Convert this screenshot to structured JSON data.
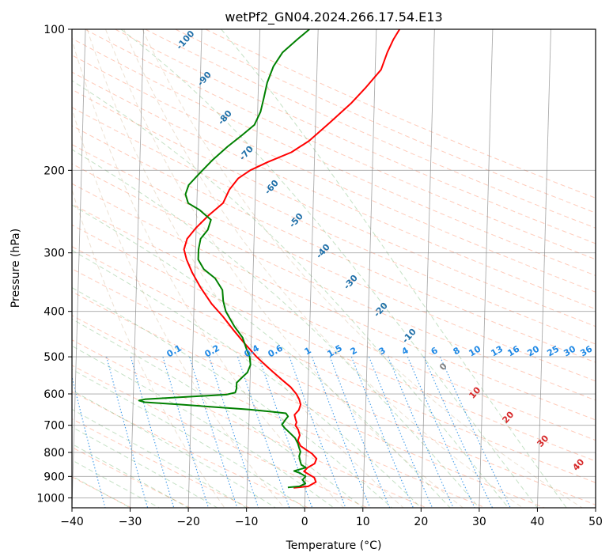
{
  "chart_data": {
    "type": "line",
    "title": "wetPf2_GN04.2024.266.17.54.E13",
    "xlabel": "Temperature (°C)",
    "ylabel": "Pressure (hPa)",
    "xlim": [
      -40,
      50
    ],
    "ylim": [
      1050,
      100
    ],
    "y_scale": "log",
    "skew": "skew-T",
    "x_ticks": [
      -40,
      -30,
      -20,
      -10,
      0,
      10,
      20,
      30,
      40,
      50
    ],
    "y_ticks": [
      100,
      200,
      300,
      400,
      500,
      600,
      700,
      800,
      900,
      1000
    ],
    "grid": true,
    "series": [
      {
        "color": "#ff0000",
        "points": [
          [
            -2,
            952
          ],
          [
            0.5,
            945
          ],
          [
            1.8,
            925
          ],
          [
            1.5,
            905
          ],
          [
            0.5,
            890
          ],
          [
            -0.3,
            878
          ],
          [
            0.3,
            862
          ],
          [
            1.5,
            845
          ],
          [
            1.8,
            825
          ],
          [
            1,
            805
          ],
          [
            0,
            790
          ],
          [
            -1,
            775
          ],
          [
            -1.5,
            755
          ],
          [
            -1.2,
            735
          ],
          [
            -1.5,
            715
          ],
          [
            -2,
            700
          ],
          [
            -1.8,
            690
          ],
          [
            -2,
            680
          ],
          [
            -2.2,
            665
          ],
          [
            -1.5,
            650
          ],
          [
            -1.2,
            632
          ],
          [
            -1.5,
            615
          ],
          [
            -2,
            600
          ],
          [
            -3,
            580
          ],
          [
            -4.5,
            560
          ],
          [
            -6,
            540
          ],
          [
            -7.5,
            520
          ],
          [
            -9,
            500
          ],
          [
            -11,
            470
          ],
          [
            -13,
            440
          ],
          [
            -15,
            410
          ],
          [
            -17,
            385
          ],
          [
            -19,
            355
          ],
          [
            -20.5,
            330
          ],
          [
            -21.5,
            310
          ],
          [
            -22,
            295
          ],
          [
            -21.5,
            280
          ],
          [
            -20,
            265
          ],
          [
            -18,
            250
          ],
          [
            -15.5,
            235
          ],
          [
            -14.5,
            220
          ],
          [
            -13,
            208
          ],
          [
            -11,
            200
          ],
          [
            -8,
            192
          ],
          [
            -4,
            183
          ],
          [
            -1,
            173
          ],
          [
            2.5,
            158
          ],
          [
            6,
            144
          ],
          [
            8.5,
            133
          ],
          [
            11,
            122
          ],
          [
            12,
            112
          ],
          [
            13,
            105
          ],
          [
            14,
            100
          ]
        ]
      },
      {
        "color": "#008000",
        "points": [
          [
            -3,
            950
          ],
          [
            -1,
            945
          ],
          [
            0,
            932
          ],
          [
            -0.5,
            915
          ],
          [
            0,
            900
          ],
          [
            -1,
            885
          ],
          [
            -2,
            876
          ],
          [
            0,
            862
          ],
          [
            -0.8,
            850
          ],
          [
            -1,
            835
          ],
          [
            -1.2,
            815
          ],
          [
            -1,
            797
          ],
          [
            -1.2,
            785
          ],
          [
            -1.5,
            765
          ],
          [
            -2,
            745
          ],
          [
            -3,
            725
          ],
          [
            -3.8,
            710
          ],
          [
            -4.3,
            698
          ],
          [
            -3.8,
            683
          ],
          [
            -3.3,
            670
          ],
          [
            -3.7,
            660
          ],
          [
            -6,
            655
          ],
          [
            -10,
            648
          ],
          [
            -16,
            640
          ],
          [
            -22,
            632
          ],
          [
            -28,
            625
          ],
          [
            -29,
            620
          ],
          [
            -28,
            616
          ],
          [
            -20,
            608
          ],
          [
            -14,
            602
          ],
          [
            -12.5,
            596
          ],
          [
            -12.3,
            585
          ],
          [
            -12.3,
            568
          ],
          [
            -11.5,
            555
          ],
          [
            -10.5,
            540
          ],
          [
            -10,
            520
          ],
          [
            -10.2,
            500
          ],
          [
            -10.8,
            480
          ],
          [
            -11.5,
            455
          ],
          [
            -13,
            430
          ],
          [
            -14.5,
            400
          ],
          [
            -15,
            380
          ],
          [
            -15.2,
            360
          ],
          [
            -16.5,
            340
          ],
          [
            -18.5,
            325
          ],
          [
            -19.5,
            310
          ],
          [
            -19.5,
            295
          ],
          [
            -19.2,
            280
          ],
          [
            -18,
            268
          ],
          [
            -17.5,
            255
          ],
          [
            -19.5,
            243
          ],
          [
            -21.5,
            235
          ],
          [
            -22,
            225
          ],
          [
            -21.5,
            215
          ],
          [
            -20,
            205
          ],
          [
            -17.5,
            190
          ],
          [
            -15,
            178
          ],
          [
            -12.5,
            168
          ],
          [
            -10.5,
            160
          ],
          [
            -9.5,
            150
          ],
          [
            -9,
            140
          ],
          [
            -8.5,
            130
          ],
          [
            -7.5,
            120
          ],
          [
            -6,
            112
          ],
          [
            -3.5,
            105
          ],
          [
            -1.5,
            100
          ]
        ]
      }
    ],
    "dry_adiabat_labels": [
      "-100",
      "-90",
      "-80",
      "-70",
      "-60",
      "-50",
      "-40",
      "-30",
      "-20",
      "-10"
    ],
    "moist_adiabat_labels": [
      "0",
      "10",
      "20",
      "30",
      "40"
    ],
    "mixing_ratio_labels": [
      "0.1",
      "0.2",
      "0.4",
      "0.6",
      "1",
      "1.5",
      "2",
      "3",
      "4",
      "6",
      "8",
      "10",
      "13",
      "16",
      "20",
      "25",
      "30",
      "36"
    ]
  }
}
